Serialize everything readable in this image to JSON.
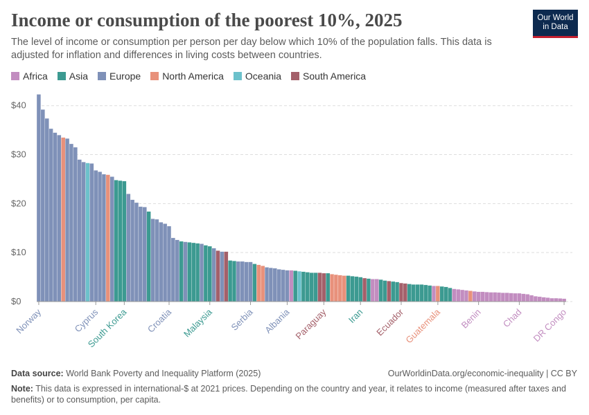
{
  "chart_data": {
    "type": "bar",
    "title": "Income or consumption of the poorest 10%, 2025",
    "subtitle": "The level of income or consumption per person per day below which 10% of the population falls. This data is adjusted for inflation and differences in living costs between countries.",
    "logo": "Our World in Data",
    "source_label": "Data source:",
    "source": "World Bank Poverty and Inequality Platform (2025)",
    "url": "OurWorldinData.org/economic-inequality | CC BY",
    "note_label": "Note:",
    "note": "This data is expressed in international-$ at 2021 prices. Depending on the country and year, it relates to income (measured after taxes and benefits) or to consumption, per capita.",
    "ylim": [
      0,
      42.5
    ],
    "yticks": [
      {
        "value": 0,
        "label": "$0"
      },
      {
        "value": 10,
        "label": "$10"
      },
      {
        "value": 20,
        "label": "$20"
      },
      {
        "value": 30,
        "label": "$30"
      },
      {
        "value": 40,
        "label": "$40"
      }
    ],
    "grid": true,
    "categories": [
      "Norway",
      null,
      null,
      null,
      null,
      null,
      null,
      null,
      null,
      null,
      null,
      null,
      null,
      null,
      "Cyprus",
      null,
      null,
      null,
      null,
      null,
      null,
      "South Korea",
      null,
      null,
      null,
      null,
      null,
      null,
      null,
      null,
      null,
      null,
      "Croatia",
      null,
      null,
      null,
      null,
      null,
      null,
      null,
      null,
      null,
      "Malaysia",
      null,
      null,
      null,
      null,
      null,
      null,
      null,
      null,
      null,
      "Serbia",
      null,
      null,
      null,
      null,
      null,
      null,
      null,
      null,
      "Albania",
      null,
      null,
      null,
      null,
      null,
      null,
      null,
      null,
      "Paraguay",
      null,
      null,
      null,
      null,
      null,
      null,
      null,
      null,
      "Iran",
      null,
      null,
      null,
      null,
      null,
      null,
      null,
      null,
      null,
      "Ecuador",
      null,
      null,
      null,
      null,
      null,
      null,
      null,
      null,
      "Guatemala",
      null,
      null,
      null,
      null,
      null,
      null,
      null,
      null,
      null,
      "Benin",
      null,
      null,
      null,
      null,
      null,
      null,
      null,
      null,
      null,
      "Chad",
      null,
      null,
      null,
      null,
      null,
      null,
      null,
      null,
      null,
      null,
      "DR Congo"
    ],
    "series": [
      {
        "name": "Africa",
        "color": "#c28dc0",
        "values": [
          null,
          null,
          null,
          null,
          null,
          null,
          null,
          null,
          null,
          null,
          null,
          null,
          null,
          null,
          null,
          null,
          null,
          null,
          null,
          null,
          null,
          null,
          null,
          null,
          null,
          null,
          null,
          null,
          null,
          null,
          null,
          null,
          null,
          null,
          null,
          null,
          null,
          null,
          null,
          null,
          null,
          null,
          null,
          null,
          null,
          null,
          null,
          null,
          null,
          null,
          null,
          null,
          null,
          null,
          null,
          null,
          null,
          null,
          null,
          null,
          null,
          null,
          6.4,
          null,
          null,
          null,
          null,
          null,
          null,
          null,
          null,
          null,
          null,
          null,
          null,
          null,
          null,
          null,
          null,
          null,
          null,
          null,
          4.6,
          4.6,
          null,
          null,
          null,
          null,
          null,
          null,
          null,
          null,
          null,
          null,
          null,
          null,
          null,
          3.2,
          null,
          null,
          null,
          null,
          2.6,
          2.5,
          2.4,
          2.3,
          null,
          2.1,
          2.0,
          2.0,
          1.95,
          1.9,
          1.9,
          1.85,
          1.8,
          1.8,
          1.75,
          1.7,
          1.7,
          1.6,
          1.5,
          1.3,
          1.1,
          1.0,
          0.9,
          0.8,
          0.7,
          0.7,
          0.65,
          0.6
        ]
      },
      {
        "name": "Asia",
        "color": "#3c9a91",
        "values": [
          null,
          null,
          null,
          null,
          null,
          null,
          null,
          null,
          null,
          null,
          null,
          null,
          null,
          null,
          null,
          null,
          null,
          null,
          null,
          24.8,
          24.7,
          24.6,
          null,
          null,
          null,
          null,
          null,
          18.4,
          null,
          null,
          null,
          null,
          null,
          null,
          null,
          12.3,
          null,
          12.1,
          12.0,
          11.9,
          null,
          11.5,
          11.3,
          null,
          null,
          null,
          null,
          8.4,
          8.3,
          null,
          null,
          null,
          null,
          7.7,
          null,
          null,
          null,
          null,
          null,
          null,
          null,
          null,
          null,
          6.3,
          null,
          6.1,
          6.0,
          5.9,
          5.9,
          null,
          null,
          5.8,
          null,
          null,
          null,
          null,
          5.3,
          5.2,
          5.1,
          5.0,
          null,
          4.7,
          null,
          null,
          4.5,
          4.3,
          null,
          4.1,
          4.0,
          null,
          null,
          3.6,
          3.5,
          3.5,
          3.5,
          3.4,
          3.3,
          null,
          null,
          3.1,
          3.0,
          2.8,
          null,
          null,
          null,
          null,
          null,
          null,
          null,
          null,
          null,
          null,
          null,
          null,
          null,
          null,
          null,
          null,
          null,
          null,
          null,
          null,
          null,
          null,
          null,
          null,
          null,
          null,
          null,
          null
        ]
      },
      {
        "name": "Europe",
        "color": "#7f91b8",
        "values": [
          42.3,
          39.2,
          37.4,
          35.3,
          34.5,
          34.0,
          null,
          33.3,
          32.2,
          31.5,
          29.0,
          28.5,
          null,
          28.2,
          26.8,
          26.5,
          26.0,
          null,
          25.5,
          null,
          null,
          null,
          22.0,
          20.8,
          20.2,
          19.4,
          19.3,
          null,
          16.9,
          16.8,
          16.2,
          15.9,
          15.4,
          13.0,
          12.6,
          null,
          12.2,
          null,
          null,
          null,
          11.8,
          null,
          null,
          10.9,
          null,
          10.2,
          null,
          null,
          null,
          8.2,
          8.2,
          8.1,
          8.1,
          null,
          null,
          null,
          7.0,
          6.9,
          6.8,
          6.6,
          6.5,
          6.4,
          null,
          null,
          null,
          null,
          null,
          null,
          null,
          null,
          null,
          null,
          null,
          null,
          null,
          null,
          null,
          null,
          null,
          null,
          null,
          null,
          null,
          null,
          null,
          null,
          null,
          null,
          null,
          null,
          null,
          null,
          null,
          null,
          null,
          null,
          null,
          null,
          null,
          null,
          null,
          null,
          null,
          null,
          null,
          null,
          null,
          null,
          null,
          null,
          null,
          null,
          null,
          null,
          null,
          null,
          null,
          null,
          null,
          null,
          null,
          null,
          null,
          null,
          null,
          null,
          null,
          null,
          null,
          null
        ]
      },
      {
        "name": "North America",
        "color": "#e8917b",
        "values": [
          null,
          null,
          null,
          null,
          null,
          null,
          33.5,
          null,
          null,
          null,
          null,
          null,
          null,
          null,
          null,
          null,
          null,
          25.9,
          null,
          null,
          null,
          null,
          null,
          null,
          null,
          null,
          null,
          null,
          null,
          null,
          null,
          null,
          null,
          null,
          null,
          null,
          null,
          null,
          null,
          null,
          null,
          null,
          null,
          null,
          null,
          null,
          null,
          null,
          null,
          null,
          null,
          null,
          null,
          null,
          7.5,
          7.3,
          null,
          null,
          null,
          null,
          null,
          null,
          null,
          null,
          null,
          null,
          null,
          null,
          null,
          null,
          null,
          null,
          5.6,
          5.5,
          5.4,
          5.3,
          null,
          null,
          null,
          null,
          null,
          null,
          null,
          null,
          null,
          null,
          null,
          null,
          null,
          null,
          null,
          null,
          null,
          null,
          null,
          null,
          null,
          null,
          3.2,
          null,
          null,
          null,
          null,
          null,
          null,
          null,
          2.2,
          null,
          null,
          null,
          null,
          null,
          null,
          null,
          null,
          null,
          null,
          null,
          null,
          null,
          null,
          null,
          null,
          null,
          null,
          null,
          null,
          null,
          null,
          null
        ]
      },
      {
        "name": "Oceania",
        "color": "#6cc1cb",
        "values": [
          null,
          null,
          null,
          null,
          null,
          null,
          null,
          null,
          null,
          null,
          null,
          null,
          28.3,
          null,
          null,
          null,
          null,
          null,
          null,
          null,
          null,
          null,
          null,
          null,
          null,
          null,
          null,
          null,
          null,
          null,
          null,
          null,
          null,
          null,
          null,
          null,
          null,
          null,
          null,
          null,
          null,
          null,
          null,
          null,
          null,
          null,
          null,
          null,
          null,
          null,
          null,
          null,
          null,
          null,
          null,
          null,
          null,
          null,
          null,
          null,
          null,
          null,
          null,
          null,
          6.2,
          null,
          null,
          null,
          null,
          null,
          null,
          null,
          null,
          null,
          null,
          null,
          null,
          null,
          null,
          null,
          null,
          null,
          null,
          null,
          null,
          null,
          null,
          null,
          null,
          null,
          null,
          null,
          null,
          null,
          null,
          null,
          null,
          null,
          null,
          null,
          null,
          null,
          null,
          null,
          null,
          null,
          null,
          null,
          null,
          null,
          null,
          null,
          null,
          null,
          null,
          null,
          null,
          null,
          null,
          null,
          null,
          null,
          null,
          null,
          null,
          null,
          null,
          null,
          null,
          null
        ]
      },
      {
        "name": "South America",
        "color": "#a4606a",
        "values": [
          null,
          null,
          null,
          null,
          null,
          null,
          null,
          null,
          null,
          null,
          null,
          null,
          null,
          null,
          null,
          null,
          null,
          null,
          null,
          null,
          null,
          null,
          null,
          null,
          null,
          null,
          null,
          null,
          null,
          null,
          null,
          null,
          null,
          null,
          null,
          null,
          null,
          null,
          null,
          null,
          null,
          null,
          null,
          null,
          10.4,
          null,
          10.2,
          null,
          null,
          null,
          null,
          null,
          null,
          null,
          null,
          null,
          null,
          null,
          null,
          null,
          null,
          null,
          null,
          null,
          null,
          null,
          null,
          null,
          null,
          5.9,
          5.8,
          null,
          null,
          null,
          null,
          null,
          null,
          null,
          null,
          null,
          4.8,
          null,
          null,
          null,
          null,
          null,
          4.2,
          null,
          null,
          3.8,
          3.7,
          null,
          null,
          null,
          null,
          null,
          null,
          null,
          null,
          null,
          null,
          null,
          null,
          null,
          null,
          null,
          null,
          null,
          null,
          null,
          null,
          null,
          null,
          null,
          null,
          null,
          null,
          null,
          null,
          null,
          null,
          null,
          null,
          null,
          null,
          null,
          null,
          null,
          null,
          null
        ]
      }
    ]
  }
}
